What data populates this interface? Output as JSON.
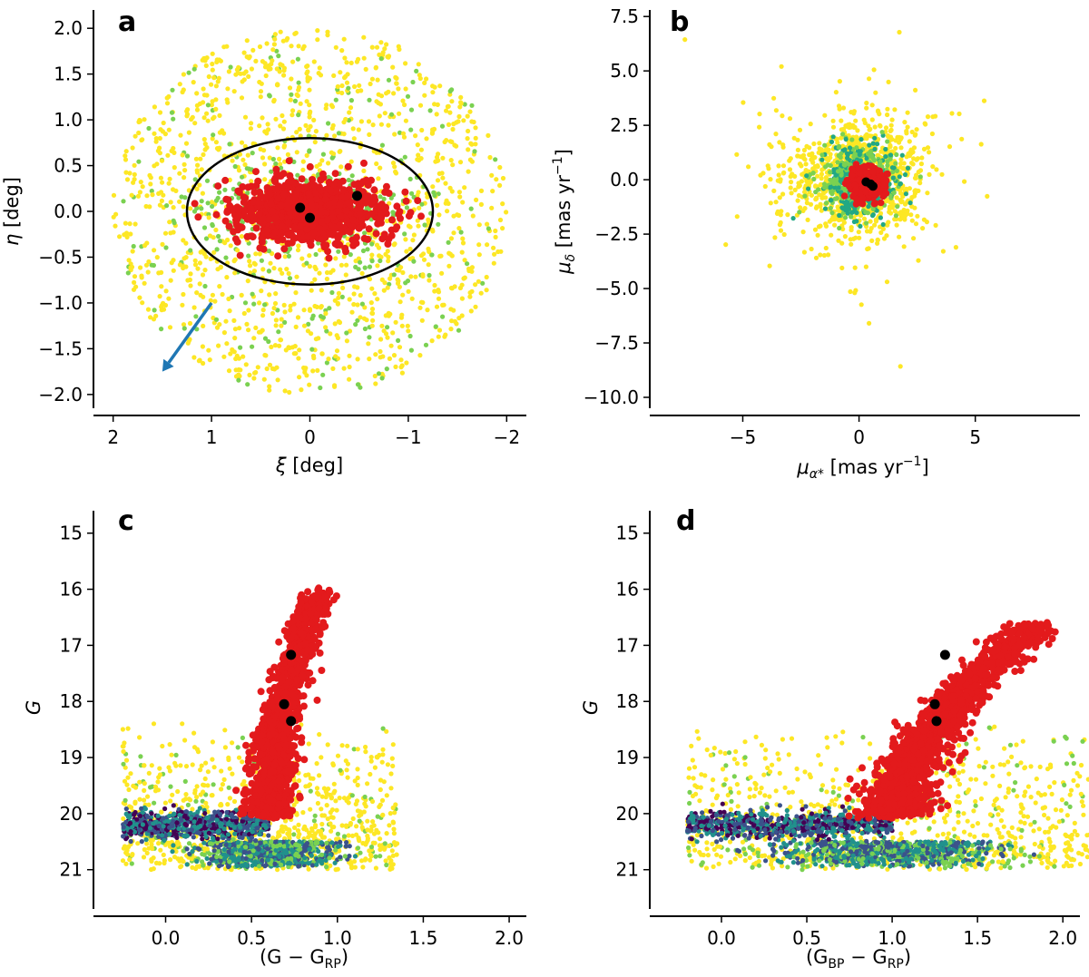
{
  "chart_data": [
    {
      "panel": "a",
      "type": "scatter",
      "xlabel_text": "[deg]",
      "ylabel_text": "[deg]",
      "xlabel_symbol": "ξ",
      "ylabel_symbol": "η",
      "xlim": [
        2.2,
        -2.2
      ],
      "ylim": [
        -2.15,
        2.2
      ],
      "x_ticks": [
        2,
        1,
        0,
        -1,
        -2
      ],
      "x_tick_labels": [
        "2",
        "1",
        "0",
        "−1",
        "−2"
      ],
      "y_ticks": [
        2.0,
        1.5,
        1.0,
        0.5,
        0.0,
        -0.5,
        -1.0,
        -1.5,
        -2.0
      ],
      "y_tick_labels": [
        "2.0",
        "1.5",
        "1.0",
        "0.5",
        "0.0",
        "−0.5",
        "−1.0",
        "−1.5",
        "−2.0"
      ],
      "field_radius": 2.0,
      "member_region": {
        "shape": "ellipse",
        "center": [
          0,
          0
        ],
        "semi_axis_x": 1.25,
        "semi_axis_y": 0.8
      },
      "black_points": [
        [
          0.1,
          0.04
        ],
        [
          0.0,
          -0.07
        ],
        [
          -0.48,
          0.17
        ]
      ],
      "arrow": {
        "from": [
          1.0,
          -1.0
        ],
        "to": [
          1.5,
          -1.75
        ],
        "color": "#1f77b4"
      },
      "colors": {
        "field": "#fde725",
        "mid": "#7ad151",
        "members": "#e31a1c",
        "special": "#000000"
      }
    },
    {
      "panel": "b",
      "type": "scatter",
      "xlabel_text": "[mas yr",
      "ylabel_text": "[mas yr",
      "xlabel_symbol": "μ",
      "xlabel_subscript": "α*",
      "ylabel_symbol": "μ",
      "ylabel_subscript": "δ",
      "unit_exponent": "−1",
      "xlim": [
        -9,
        9.5
      ],
      "ylim": [
        -10.5,
        7.8
      ],
      "x_ticks": [
        -5,
        0,
        5
      ],
      "x_tick_labels": [
        "−5",
        "0",
        "5"
      ],
      "y_ticks": [
        7.5,
        5.0,
        2.5,
        0.0,
        -2.5,
        -5.0,
        -7.5,
        -10.0
      ],
      "y_tick_labels": [
        "7.5",
        "5.0",
        "2.5",
        "0.0",
        "−2.5",
        "−5.0",
        "−7.5",
        "−10.0"
      ],
      "member_center": [
        0.35,
        -0.2
      ],
      "black_points": [
        [
          0.3,
          -0.1
        ],
        [
          0.5,
          -0.2
        ],
        [
          0.6,
          -0.3
        ]
      ],
      "colors": {
        "field": "#fde725",
        "mid": "#7ad151",
        "dense": "#22a884",
        "members": "#e31a1c",
        "special": "#000000"
      }
    },
    {
      "panel": "c",
      "type": "scatter",
      "xlabel_text": "(G − G",
      "xlabel_subscript": "RP",
      "ylabel_text": "G",
      "xlim": [
        -0.42,
        2.1
      ],
      "ylim": [
        21.7,
        14.6
      ],
      "x_ticks": [
        0.0,
        0.5,
        1.0,
        1.5,
        2.0
      ],
      "x_tick_labels": [
        "0.0",
        "0.5",
        "1.0",
        "1.5",
        "2.0"
      ],
      "y_ticks": [
        15,
        16,
        17,
        18,
        19,
        20,
        21
      ],
      "y_tick_labels": [
        "15",
        "16",
        "17",
        "18",
        "19",
        "20",
        "21"
      ],
      "red_giant_branch": {
        "bottom": [
          0.6,
          20.0
        ],
        "top": [
          0.88,
          16.1
        ]
      },
      "horizontal_branch": {
        "color_range": [
          -0.25,
          0.6
        ],
        "magnitude": 20.2
      },
      "black_points": [
        [
          0.73,
          17.17
        ],
        [
          0.69,
          18.05
        ],
        [
          0.73,
          18.35
        ]
      ],
      "colors": {
        "field": "#fde725",
        "mid": "#7ad151",
        "teal": "#21918c",
        "dense": "#3b528b",
        "densest": "#440154",
        "members": "#e31a1c",
        "special": "#000000"
      }
    },
    {
      "panel": "d",
      "type": "scatter",
      "xlabel_text": "(G",
      "xlabel_subscript": "BP",
      "xlabel_text2": " − G",
      "xlabel_subscript2": "RP",
      "ylabel_text": "G",
      "xlim": [
        -0.42,
        2.1
      ],
      "ylim": [
        21.7,
        14.6
      ],
      "x_ticks": [
        0.0,
        0.5,
        1.0,
        1.5,
        2.0
      ],
      "x_tick_labels": [
        "0.0",
        "0.5",
        "1.0",
        "1.5",
        "2.0"
      ],
      "y_ticks": [
        15,
        16,
        17,
        18,
        19,
        20,
        21
      ],
      "y_tick_labels": [
        "15",
        "16",
        "17",
        "18",
        "19",
        "20",
        "21"
      ],
      "red_giant_branch": {
        "bottom": [
          1.02,
          20.0
        ],
        "top": [
          1.85,
          16.6
        ]
      },
      "horizontal_branch": {
        "color_range": [
          -0.2,
          1.0
        ],
        "magnitude": 20.2
      },
      "black_points": [
        [
          1.31,
          17.17
        ],
        [
          1.25,
          18.05
        ],
        [
          1.26,
          18.35
        ]
      ],
      "colors": {
        "field": "#fde725",
        "mid": "#7ad151",
        "teal": "#21918c",
        "dense": "#3b528b",
        "densest": "#440154",
        "members": "#e31a1c",
        "special": "#000000"
      }
    }
  ]
}
